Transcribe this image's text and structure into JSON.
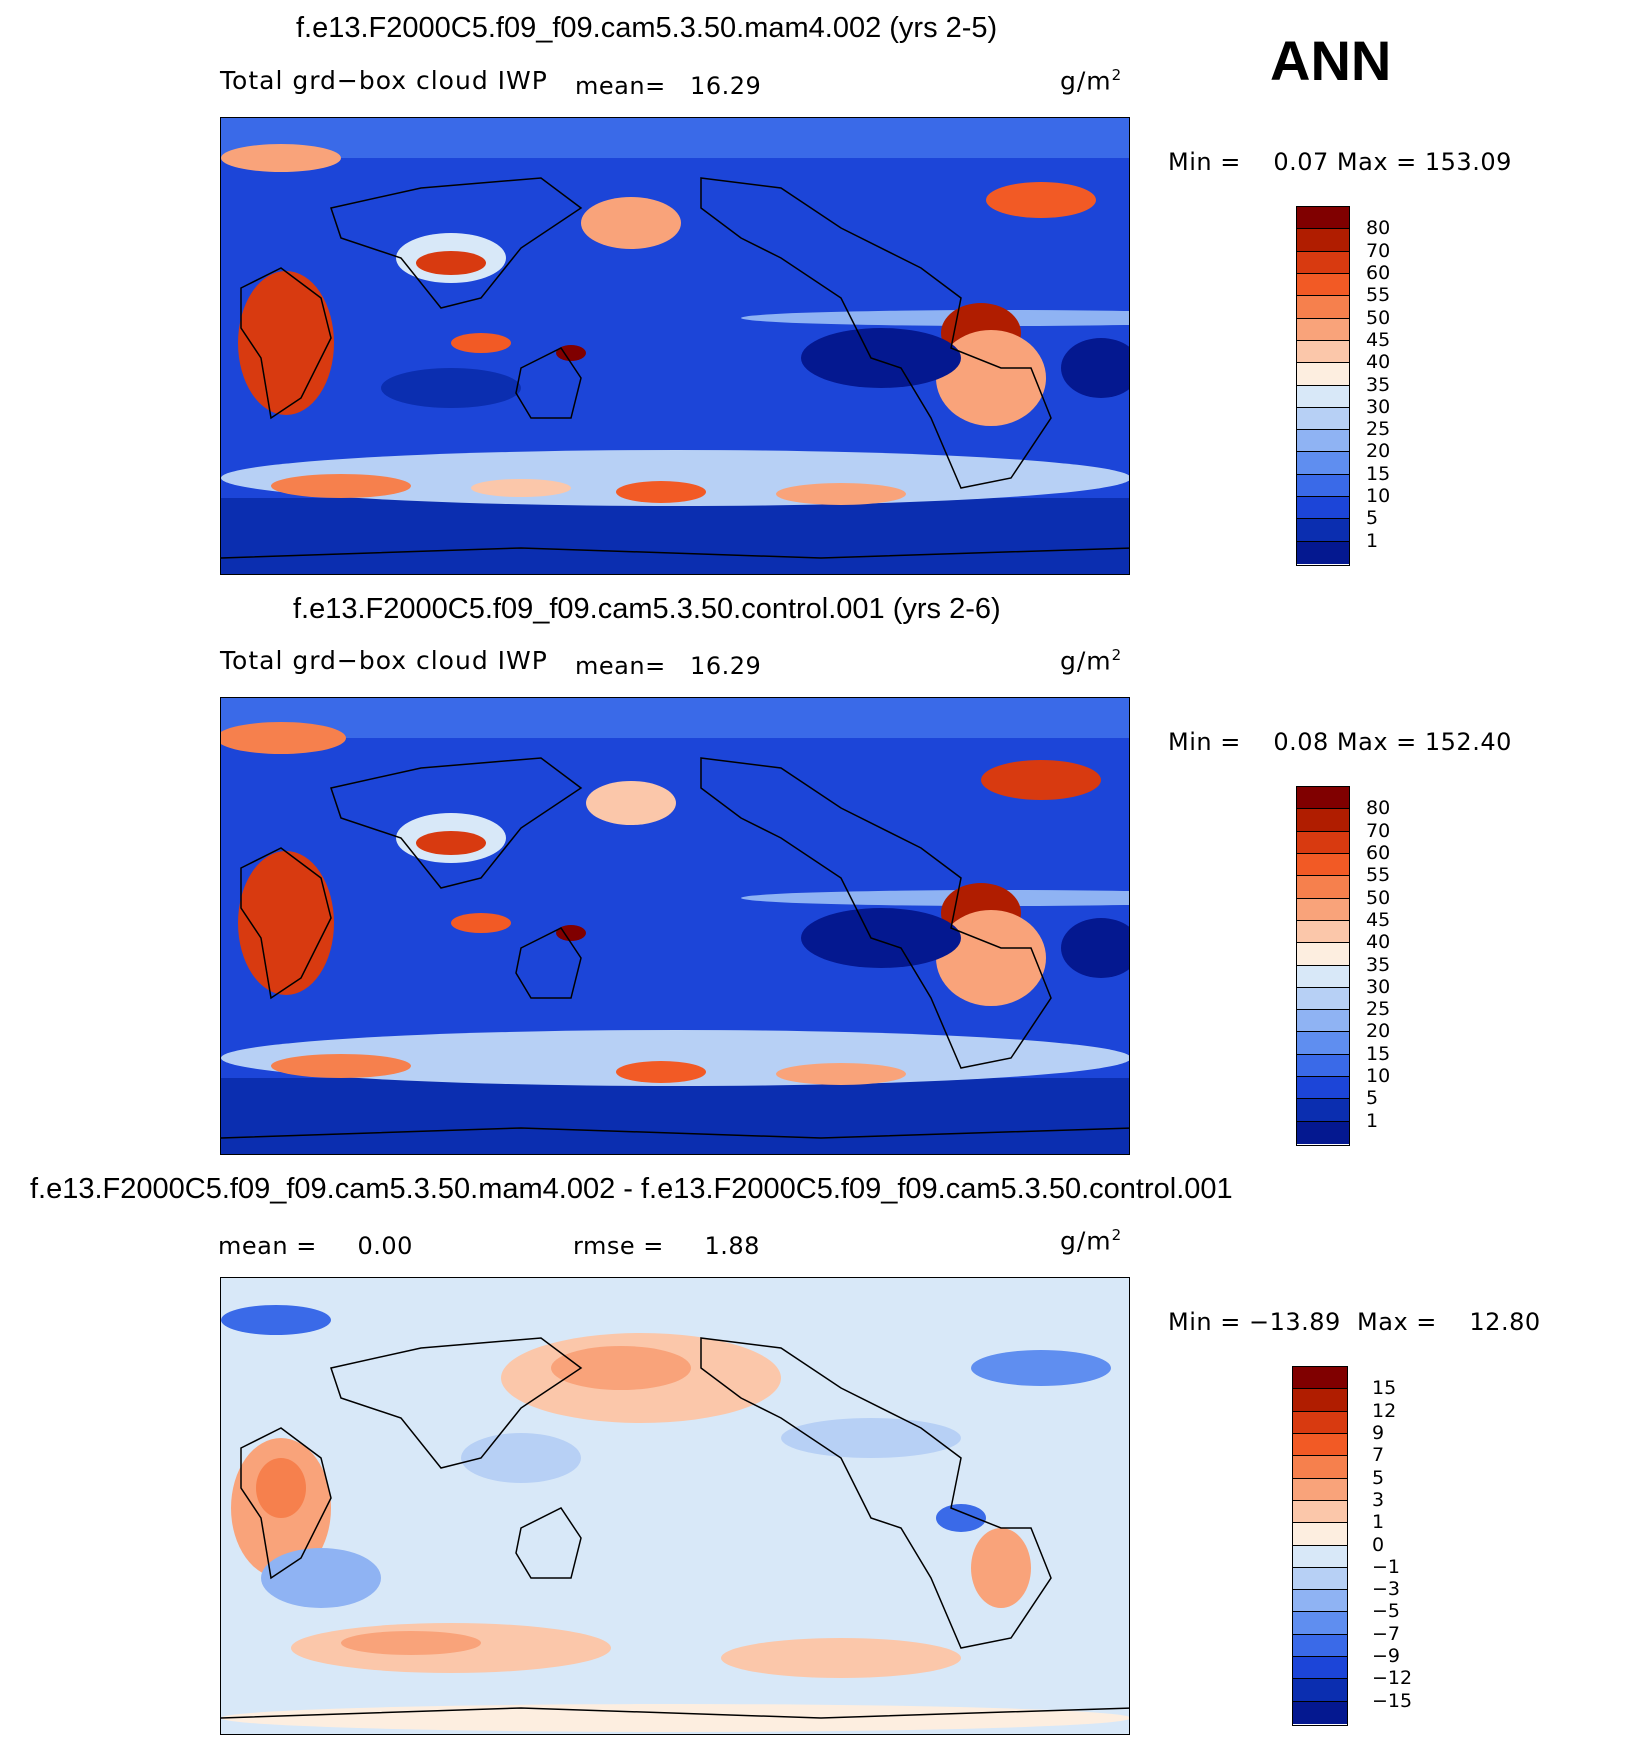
{
  "season": "ANN",
  "panels": [
    {
      "title": "f.e13.F2000C5.f09_f09.cam5.3.50.mam4.002 (yrs 2-5)",
      "left_label": "Total grd−box cloud IWP",
      "mean_text": "mean=   16.29",
      "units": "g/m",
      "units_sup": "2",
      "minmax_text": "Min =    0.07 Max = 153.09",
      "colorbar": {
        "labels": [
          "80",
          "70",
          "60",
          "55",
          "50",
          "45",
          "40",
          "35",
          "30",
          "25",
          "20",
          "15",
          "10",
          "5",
          "1"
        ],
        "colors": [
          "#800000",
          "#b01d00",
          "#d83a10",
          "#f25a25",
          "#f6804d",
          "#f9a37a",
          "#fbc7aa",
          "#fdeee0",
          "#d8e8f8",
          "#b7d0f5",
          "#8fb3f3",
          "#5f8ef0",
          "#3a6ae8",
          "#1c45d8",
          "#0b2eb0",
          "#041890"
        ]
      }
    },
    {
      "title": "f.e13.F2000C5.f09_f09.cam5.3.50.control.001 (yrs 2-6)",
      "left_label": "Total grd−box cloud IWP",
      "mean_text": "mean=   16.29",
      "units": "g/m",
      "units_sup": "2",
      "minmax_text": "Min =    0.08 Max = 152.40",
      "colorbar": {
        "labels": [
          "80",
          "70",
          "60",
          "55",
          "50",
          "45",
          "40",
          "35",
          "30",
          "25",
          "20",
          "15",
          "10",
          "5",
          "1"
        ],
        "colors": [
          "#800000",
          "#b01d00",
          "#d83a10",
          "#f25a25",
          "#f6804d",
          "#f9a37a",
          "#fbc7aa",
          "#fdeee0",
          "#d8e8f8",
          "#b7d0f5",
          "#8fb3f3",
          "#5f8ef0",
          "#3a6ae8",
          "#1c45d8",
          "#0b2eb0",
          "#041890"
        ]
      }
    },
    {
      "title": "f.e13.F2000C5.f09_f09.cam5.3.50.mam4.002 - f.e13.F2000C5.f09_f09.cam5.3.50.control.001",
      "mean_text": "mean =     0.00",
      "rmse_text": "rmse =     1.88",
      "units": "g/m",
      "units_sup": "2",
      "minmax_text": "Min = −13.89  Max =    12.80",
      "colorbar": {
        "labels": [
          "15",
          "12",
          "9",
          "7",
          "5",
          "3",
          "1",
          "0",
          "−1",
          "−3",
          "−5",
          "−7",
          "−9",
          "−12",
          "−15"
        ],
        "colors": [
          "#800000",
          "#b01d00",
          "#d83a10",
          "#f25a25",
          "#f6804d",
          "#f9a37a",
          "#fbc7aa",
          "#fdeee0",
          "#d8e8f8",
          "#b7d0f5",
          "#8fb3f3",
          "#5f8ef0",
          "#3a6ae8",
          "#1c45d8",
          "#0b2eb0",
          "#041890"
        ]
      }
    }
  ]
}
